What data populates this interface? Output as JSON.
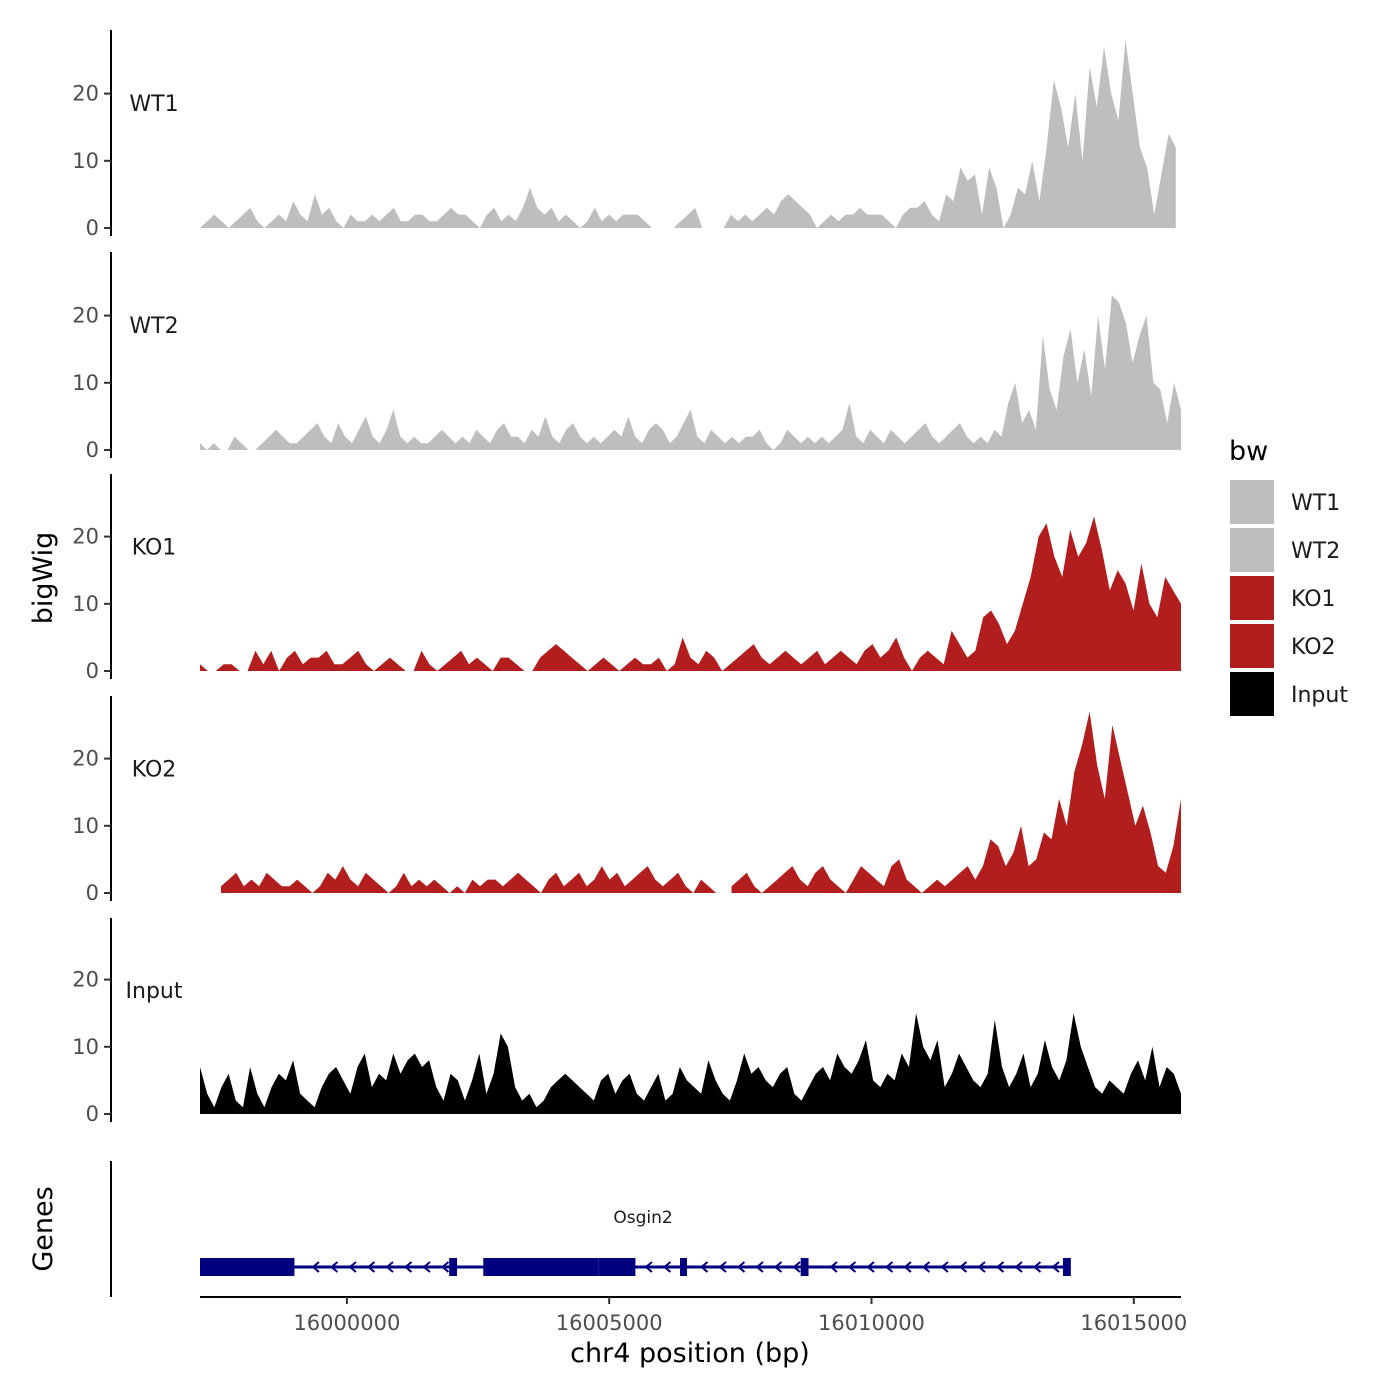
{
  "chart_data": {
    "type": "area",
    "xlabel": "chr4 position (bp)",
    "ylabel": "bigWig",
    "genes_ylabel": "Genes",
    "xlim": [
      15997200,
      16015900
    ],
    "x_ticks": [
      16000000,
      16005000,
      16010000,
      16015000
    ],
    "x_tick_labels": [
      "16000000",
      "16005000",
      "16010000",
      "16015000"
    ],
    "ylim": [
      0,
      28
    ],
    "y_ticks": [
      0,
      10,
      20
    ],
    "y_tick_labels": [
      "0",
      "10",
      "20"
    ],
    "legend": {
      "title": "bw",
      "position": "right",
      "entries": [
        {
          "label": "WT1",
          "color": "#bebebe"
        },
        {
          "label": "WT2",
          "color": "#bebebe"
        },
        {
          "label": "KO1",
          "color": "#b21e1e"
        },
        {
          "label": "KO2",
          "color": "#b21e1e"
        },
        {
          "label": "Input",
          "color": "#000000"
        }
      ]
    },
    "series": [
      {
        "name": "WT1",
        "color": "#bebebe",
        "x_start": 15997200,
        "x_end": 16015800,
        "values": [
          0,
          1,
          2,
          1,
          0,
          1,
          2,
          3,
          1,
          0,
          1,
          2,
          1,
          4,
          2,
          1,
          5,
          2,
          3,
          1,
          0,
          2,
          1,
          1,
          2,
          1,
          2,
          3,
          1,
          1,
          2,
          2,
          1,
          1,
          2,
          3,
          2,
          2,
          1,
          0,
          2,
          3,
          1,
          2,
          1,
          3,
          6,
          3,
          2,
          3,
          1,
          2,
          1,
          0,
          1,
          3,
          1,
          2,
          1,
          2,
          2,
          2,
          1,
          0,
          null,
          null,
          0,
          1,
          2,
          3,
          0,
          null,
          null,
          0,
          2,
          1,
          2,
          1,
          2,
          3,
          2,
          4,
          5,
          4,
          3,
          2,
          0,
          1,
          2,
          1,
          2,
          2,
          3,
          2,
          2,
          2,
          1,
          0,
          2,
          3,
          3,
          4,
          2,
          1,
          5,
          4,
          9,
          7,
          8,
          2,
          9,
          6,
          0,
          2,
          6,
          5,
          10,
          4,
          12,
          22,
          18,
          12,
          20,
          10,
          24,
          18,
          27,
          20,
          16,
          28,
          20,
          12,
          9,
          2,
          8,
          14,
          12
        ],
        "label_color": "#1a1a1a"
      },
      {
        "name": "WT2",
        "color": "#bebebe",
        "x_start": 15997200,
        "x_end": 16015900,
        "values": [
          1,
          0,
          1,
          0,
          0,
          2,
          1,
          0,
          0,
          1,
          2,
          3,
          2,
          1,
          1,
          2,
          3,
          4,
          2,
          1,
          4,
          2,
          1,
          3,
          5,
          2,
          1,
          3,
          6,
          2,
          1,
          2,
          1,
          1,
          2,
          3,
          2,
          1,
          2,
          1,
          3,
          2,
          1,
          3,
          4,
          2,
          2,
          1,
          3,
          2,
          5,
          2,
          1,
          3,
          4,
          2,
          1,
          2,
          1,
          2,
          3,
          2,
          5,
          2,
          1,
          3,
          4,
          3,
          1,
          2,
          4,
          6,
          2,
          1,
          3,
          2,
          1,
          2,
          1,
          2,
          2,
          3,
          1,
          0,
          1,
          3,
          2,
          1,
          2,
          1,
          2,
          1,
          2,
          3,
          7,
          2,
          1,
          3,
          2,
          1,
          3,
          2,
          1,
          2,
          3,
          4,
          2,
          1,
          2,
          3,
          4,
          2,
          1,
          2,
          1,
          3,
          2,
          7,
          10,
          4,
          6,
          3,
          17,
          9,
          6,
          14,
          18,
          10,
          15,
          8,
          20,
          12,
          23,
          22,
          19,
          13,
          17,
          20,
          10,
          9,
          4,
          10,
          6
        ],
        "label_color": "#1a1a1a"
      },
      {
        "name": "KO1",
        "color": "#b21e1e",
        "x_start": 15997200,
        "x_end": 16015900,
        "values": [
          1,
          0,
          0,
          1,
          1,
          0,
          0,
          3,
          1,
          3,
          0,
          2,
          3,
          1,
          2,
          2,
          3,
          1,
          1,
          2,
          3,
          1,
          0,
          1,
          2,
          1,
          0,
          0,
          3,
          1,
          0,
          1,
          2,
          3,
          1,
          2,
          1,
          0,
          2,
          2,
          1,
          0,
          0,
          2,
          3,
          4,
          3,
          2,
          1,
          0,
          1,
          2,
          1,
          0,
          1,
          2,
          1,
          1,
          2,
          0,
          1,
          5,
          2,
          1,
          3,
          2,
          0,
          1,
          2,
          3,
          4,
          2,
          1,
          2,
          3,
          2,
          1,
          2,
          3,
          1,
          2,
          3,
          2,
          1,
          3,
          4,
          2,
          3,
          5,
          2,
          0,
          2,
          3,
          2,
          1,
          6,
          4,
          2,
          3,
          8,
          9,
          7,
          4,
          6,
          10,
          14,
          20,
          22,
          17,
          14,
          21,
          17,
          19,
          23,
          18,
          12,
          15,
          13,
          9,
          16,
          10,
          8,
          14,
          12,
          10
        ],
        "label_color": "#1a1a1a"
      },
      {
        "name": "KO2",
        "color": "#b21e1e",
        "x_start": 15997600,
        "x_end": 16015900,
        "values": [
          1,
          2,
          3,
          1,
          2,
          1,
          3,
          2,
          1,
          1,
          2,
          1,
          0,
          1,
          3,
          2,
          4,
          2,
          1,
          3,
          2,
          1,
          0,
          1,
          3,
          1,
          2,
          1,
          2,
          1,
          0,
          1,
          0,
          2,
          1,
          2,
          2,
          1,
          2,
          3,
          2,
          1,
          0,
          2,
          3,
          1,
          2,
          3,
          1,
          2,
          4,
          2,
          3,
          1,
          2,
          3,
          4,
          2,
          1,
          2,
          3,
          1,
          0,
          2,
          1,
          0,
          null,
          1,
          2,
          3,
          1,
          0,
          1,
          2,
          3,
          4,
          2,
          1,
          3,
          4,
          2,
          1,
          0,
          2,
          4,
          3,
          2,
          1,
          4,
          5,
          2,
          1,
          0,
          1,
          2,
          1,
          2,
          3,
          4,
          2,
          4,
          8,
          7,
          4,
          6,
          10,
          4,
          5,
          9,
          8,
          14,
          10,
          18,
          22,
          27,
          19,
          14,
          25,
          20,
          15,
          10,
          13,
          9,
          4,
          3,
          7,
          14
        ],
        "label_color": "#1a1a1a"
      },
      {
        "name": "Input",
        "color": "#000000",
        "x_start": 15997200,
        "x_end": 16015900,
        "values": [
          7,
          3,
          1,
          4,
          6,
          2,
          1,
          7,
          3,
          1,
          4,
          6,
          5,
          8,
          3,
          2,
          1,
          4,
          6,
          7,
          5,
          3,
          7,
          9,
          4,
          6,
          5,
          9,
          6,
          8,
          9,
          7,
          8,
          4,
          2,
          6,
          5,
          2,
          5,
          9,
          3,
          6,
          12,
          10,
          4,
          2,
          3,
          1,
          2,
          4,
          5,
          6,
          5,
          4,
          3,
          2,
          5,
          6,
          3,
          5,
          6,
          3,
          2,
          4,
          6,
          2,
          3,
          7,
          5,
          4,
          3,
          8,
          5,
          3,
          2,
          5,
          9,
          6,
          7,
          5,
          4,
          6,
          7,
          3,
          2,
          4,
          6,
          7,
          5,
          9,
          7,
          6,
          8,
          11,
          5,
          4,
          6,
          5,
          9,
          7,
          15,
          10,
          8,
          11,
          4,
          6,
          9,
          7,
          5,
          4,
          6,
          14,
          7,
          4,
          6,
          9,
          4,
          6,
          11,
          7,
          5,
          8,
          15,
          10,
          7,
          4,
          3,
          5,
          4,
          3,
          6,
          8,
          5,
          10,
          4,
          7,
          6,
          3
        ]
      }
    ],
    "gene_track": {
      "gene_name": "Osgin2",
      "strand": "-",
      "color": "#000080",
      "start": 15997200,
      "end": 16013800,
      "exons": [
        {
          "start": 15997200,
          "end": 15999000,
          "thick": true
        },
        {
          "start": 16001950,
          "end": 16002100,
          "thick": true
        },
        {
          "start": 16002600,
          "end": 16004800,
          "thick": true
        },
        {
          "start": 16004800,
          "end": 16005500,
          "thick": true
        },
        {
          "start": 16006350,
          "end": 16006450,
          "thick": true
        },
        {
          "start": 16008650,
          "end": 16008800,
          "thick": true
        },
        {
          "start": 16013650,
          "end": 16013800,
          "thick": true
        }
      ]
    }
  }
}
